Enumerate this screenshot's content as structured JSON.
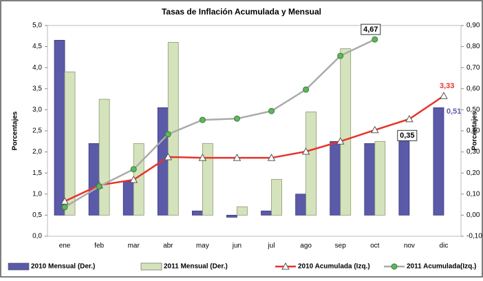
{
  "chart_data": {
    "type": "bar-line",
    "title": "Tasas de Inflación Acumulada y Mensual",
    "ylabel": "Porcentajes",
    "y2label": "Porcentajes",
    "categories": [
      "ene",
      "feb",
      "mar",
      "abr",
      "may",
      "jun",
      "jul",
      "ago",
      "sep",
      "oct",
      "nov",
      "dic"
    ],
    "ylim": [
      0,
      5
    ],
    "yticks": [
      {
        "value": 0,
        "label": "0,0"
      },
      {
        "value": 0.5,
        "label": "0,5"
      },
      {
        "value": 1,
        "label": "1,0"
      },
      {
        "value": 1.5,
        "label": "1,5"
      },
      {
        "value": 2,
        "label": "2,0"
      },
      {
        "value": 2.5,
        "label": "2,5"
      },
      {
        "value": 3,
        "label": "3,0"
      },
      {
        "value": 3.5,
        "label": "3,5"
      },
      {
        "value": 4,
        "label": "4,0"
      },
      {
        "value": 4.5,
        "label": "4,5"
      },
      {
        "value": 5,
        "label": "5,0"
      }
    ],
    "y2lim": [
      -0.1,
      0.9
    ],
    "y2ticks": [
      {
        "value": -0.1,
        "label": "-0,10"
      },
      {
        "value": 0,
        "label": "0,00"
      },
      {
        "value": 0.1,
        "label": "0,10"
      },
      {
        "value": 0.2,
        "label": "0,20"
      },
      {
        "value": 0.3,
        "label": "0,30"
      },
      {
        "value": 0.4,
        "label": "0,40"
      },
      {
        "value": 0.5,
        "label": "0,50"
      },
      {
        "value": 0.6,
        "label": "0,60"
      },
      {
        "value": 0.7,
        "label": "0,70"
      },
      {
        "value": 0.8,
        "label": "0,80"
      },
      {
        "value": 0.9,
        "label": "0,90"
      }
    ],
    "series": [
      {
        "name": "2010 Mensual (Der.)",
        "type": "bar",
        "axis": "y2",
        "color": "#5a5aa8",
        "values": [
          0.83,
          0.34,
          0.16,
          0.51,
          0.02,
          -0.01,
          0.02,
          0.1,
          0.35,
          0.34,
          0.36,
          0.51
        ],
        "value_labels": [
          null,
          null,
          null,
          null,
          null,
          null,
          null,
          null,
          null,
          null,
          null,
          "0,51"
        ]
      },
      {
        "name": "2011 Mensual (Der.)",
        "type": "bar",
        "axis": "y2",
        "color": "#d5e3bd",
        "values": [
          0.68,
          0.55,
          0.34,
          0.82,
          0.34,
          0.04,
          0.17,
          0.49,
          0.79,
          0.35,
          null,
          null
        ],
        "value_labels": [
          null,
          null,
          null,
          null,
          null,
          null,
          null,
          null,
          null,
          "0,35",
          null,
          null
        ]
      },
      {
        "name": "2010 Acumulada (Izq.)",
        "type": "line",
        "color": "#e8322a",
        "marker": "triangle",
        "values": [
          0.83,
          1.21,
          1.34,
          1.88,
          1.86,
          1.86,
          1.86,
          2.01,
          2.25,
          2.52,
          2.78,
          3.33
        ],
        "value_labels": [
          null,
          null,
          null,
          null,
          null,
          null,
          null,
          null,
          null,
          null,
          null,
          "3,33"
        ]
      },
      {
        "name": "2011 Acumulada(Izq.)",
        "type": "line",
        "color": "#aaaaaa",
        "marker_color": "#5cb85c",
        "marker": "circle",
        "values": [
          0.69,
          1.18,
          1.59,
          2.42,
          2.76,
          2.79,
          2.97,
          3.48,
          4.28,
          4.67,
          null,
          null
        ],
        "value_labels": [
          null,
          null,
          null,
          null,
          null,
          null,
          null,
          null,
          null,
          "4,67",
          null,
          null
        ]
      }
    ]
  }
}
